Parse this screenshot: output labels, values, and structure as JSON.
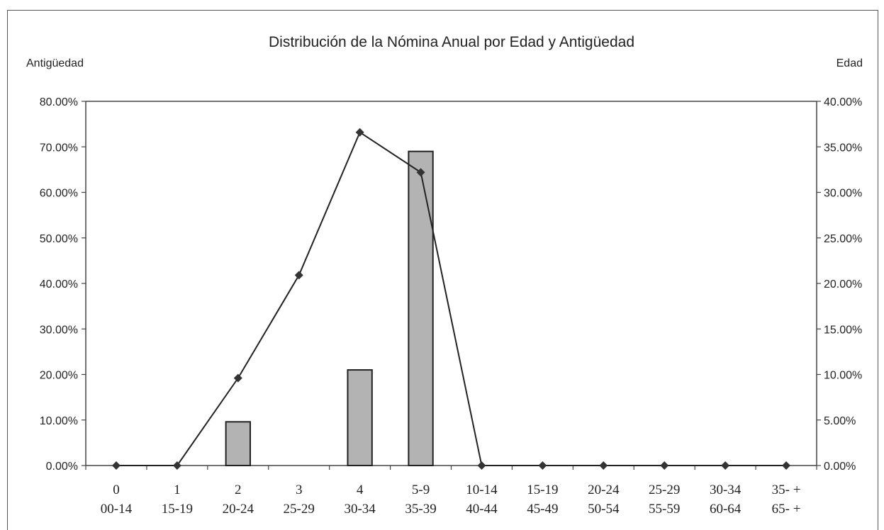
{
  "chart_data": {
    "type": "bar+line",
    "title": "Distribución de la Nómina Anual por Edad y Antigüedad",
    "ylabel_left": "Antigüedad",
    "ylabel_right": "Edad",
    "ylim_left": [
      0,
      80
    ],
    "ylim_right": [
      0,
      40
    ],
    "yticks_left": [
      "0.00%",
      "10.00%",
      "20.00%",
      "30.00%",
      "40.00%",
      "50.00%",
      "60.00%",
      "70.00%",
      "80.00%"
    ],
    "yticks_right": [
      "0.00%",
      "5.00%",
      "10.00%",
      "15.00%",
      "20.00%",
      "25.00%",
      "30.00%",
      "35.00%",
      "40.00%"
    ],
    "categories_antiguedad": [
      "0",
      "1",
      "2",
      "3",
      "4",
      "5-9",
      "10-14",
      "15-19",
      "20-24",
      "25-29",
      "30-34",
      "35- +"
    ],
    "categories_edad": [
      "00-14",
      "15-19",
      "20-24",
      "25-29",
      "30-34",
      "35-39",
      "40-44",
      "45-49",
      "50-54",
      "55-59",
      "60-64",
      "65- +"
    ],
    "bars_antiguedad": [
      0,
      0,
      9.6,
      0,
      21,
      69,
      0,
      0,
      0,
      0,
      0,
      0
    ],
    "line_edad": [
      0,
      0,
      9.6,
      20.9,
      36.6,
      32.2,
      0,
      0,
      0,
      0,
      0,
      0
    ],
    "bar_color": "#b3b3b3",
    "line_color": "#222222",
    "grid": false
  }
}
